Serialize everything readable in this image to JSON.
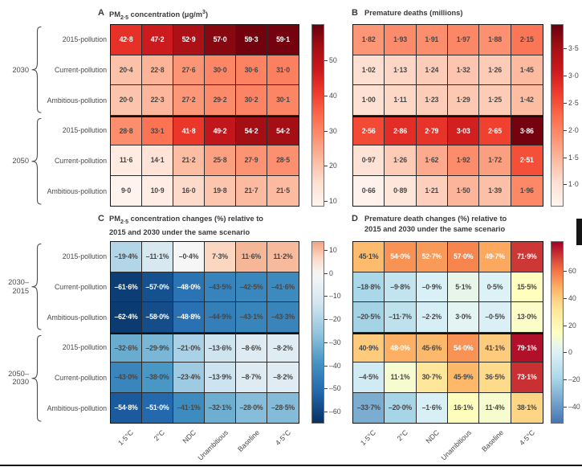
{
  "columns": [
    "1·5°C",
    "2°C",
    "NDC",
    "Unambitious",
    "Baseline",
    "4·5°C"
  ],
  "colormaps": {
    "reds": [
      [
        0,
        "#fff5f0"
      ],
      [
        0.125,
        "#fee0d2"
      ],
      [
        0.25,
        "#fcbba1"
      ],
      [
        0.375,
        "#fc9272"
      ],
      [
        0.5,
        "#fb6a4a"
      ],
      [
        0.625,
        "#ef3b2c"
      ],
      [
        0.75,
        "#cb181d"
      ],
      [
        0.875,
        "#a50f15"
      ],
      [
        1,
        "#67000d"
      ]
    ],
    "rdylbu": [
      [
        0,
        "#4575b4"
      ],
      [
        0.25,
        "#abd9e9"
      ],
      [
        0.4,
        "#e0f3f8"
      ],
      [
        0.5,
        "#ffffbf"
      ],
      [
        0.65,
        "#fee090"
      ],
      [
        0.75,
        "#fdae61"
      ],
      [
        0.85,
        "#f46d43"
      ],
      [
        1,
        "#a50026"
      ]
    ],
    "rdbu_neg": [
      [
        0,
        "#f7f7f7"
      ],
      [
        0.2,
        "#d1e5f0"
      ],
      [
        0.4,
        "#92c5de"
      ],
      [
        0.6,
        "#4393c3"
      ],
      [
        0.8,
        "#2166ac"
      ],
      [
        1,
        "#053061"
      ]
    ],
    "rdbu_pos": [
      [
        0,
        "#f7f7f7"
      ],
      [
        0.5,
        "#fbd9c5"
      ],
      [
        1,
        "#f4a582"
      ]
    ]
  },
  "chart_data": [
    {
      "id": "A",
      "type": "heatmap",
      "title_lines": [
        [
          {
            "t": "PM"
          },
          {
            "t": "2·5",
            "s": "sub"
          },
          {
            "t": " concentration (μg/m"
          },
          {
            "t": "3",
            "s": "sup"
          },
          {
            "t": ")"
          }
        ]
      ],
      "row_groups": [
        {
          "label_lines": [
            "2030"
          ],
          "rows": [
            "2015-pollution",
            "Current-pollution",
            "Ambitious-pollution"
          ]
        },
        {
          "label_lines": [
            "2050"
          ],
          "rows": [
            "2015-pollution",
            "Current-pollution",
            "Ambitious-pollution"
          ]
        }
      ],
      "values": [
        [
          42.8,
          47.2,
          52.9,
          57.0,
          59.3,
          59.1
        ],
        [
          20.4,
          22.8,
          27.6,
          30.0,
          30.6,
          31.0
        ],
        [
          20.0,
          22.3,
          27.2,
          29.2,
          30.2,
          30.1
        ],
        [
          28.8,
          33.1,
          41.8,
          49.2,
          54.2,
          54.2
        ],
        [
          11.6,
          14.1,
          21.2,
          25.8,
          27.9,
          28.5
        ],
        [
          9.0,
          10.9,
          16.0,
          19.8,
          21.7,
          21.5
        ]
      ],
      "decimals": 1,
      "suffix": "",
      "colormap": "reds",
      "vmin": 8.5,
      "vmax": 60.5,
      "colorbar_ticks": [
        50,
        40,
        30,
        20,
        10
      ],
      "tick_decimals": 0,
      "white_if": {
        "op": ">=",
        "value": 41
      }
    },
    {
      "id": "B",
      "type": "heatmap",
      "title_lines": [
        [
          {
            "t": "Premature deaths (millions)"
          }
        ]
      ],
      "row_groups": [
        {
          "label_lines": [
            "2030"
          ],
          "rows": [
            "2015-pollution",
            "Current-pollution",
            "Ambitious-pollution"
          ]
        },
        {
          "label_lines": [
            "2050"
          ],
          "rows": [
            "2015-pollution",
            "Current-pollution",
            "Ambitious-pollution"
          ]
        }
      ],
      "values": [
        [
          1.82,
          1.93,
          1.91,
          1.97,
          1.88,
          2.15
        ],
        [
          1.02,
          1.13,
          1.24,
          1.32,
          1.26,
          1.45
        ],
        [
          1.0,
          1.11,
          1.23,
          1.29,
          1.25,
          1.42
        ],
        [
          2.56,
          2.86,
          2.79,
          3.03,
          2.65,
          3.86
        ],
        [
          0.97,
          1.26,
          1.62,
          1.92,
          1.72,
          2.51
        ],
        [
          0.66,
          0.89,
          1.21,
          1.5,
          1.39,
          1.96
        ]
      ],
      "decimals": 2,
      "suffix": "",
      "colormap": "reds",
      "vmin": 0.6,
      "vmax": 3.95,
      "colorbar_ticks": [
        3.5,
        3.0,
        2.5,
        2.0,
        1.5,
        1.0
      ],
      "tick_decimals": 1,
      "white_if": {
        "op": ">=",
        "value": 2.5
      }
    },
    {
      "id": "C",
      "type": "heatmap",
      "title_lines": [
        [
          {
            "t": "PM"
          },
          {
            "t": "2·5",
            "s": "sub"
          },
          {
            "t": " concentration changes (%) relative to"
          }
        ],
        [
          {
            "t": "2015 and 2030 under the same scenario"
          }
        ]
      ],
      "row_groups": [
        {
          "label_lines": [
            "2030–",
            "2015"
          ],
          "rows": [
            "2015-pollution",
            "Current-pollution",
            "Ambitious-pollution"
          ]
        },
        {
          "label_lines": [
            "2050–",
            "2030"
          ],
          "rows": [
            "2015-pollution",
            "Current-pollution",
            "Ambitious-pollution"
          ]
        }
      ],
      "values": [
        [
          -19.4,
          -11.1,
          -0.4,
          7.3,
          11.6,
          11.2
        ],
        [
          -61.6,
          -57.0,
          -48.0,
          -43.5,
          -42.5,
          -41.6
        ],
        [
          -62.4,
          -58.0,
          -48.8,
          -44.9,
          -43.1,
          -43.3
        ],
        [
          -32.6,
          -29.9,
          -21.0,
          -13.6,
          -8.6,
          -8.2
        ],
        [
          -43.0,
          -38.0,
          -23.4,
          -13.9,
          -8.7,
          -8.2
        ],
        [
          -54.8,
          -51.0,
          -41.1,
          -32.1,
          -28.0,
          -28.5
        ]
      ],
      "decimals": 1,
      "suffix": "%",
      "colormap": "rdbu_div",
      "vmin": -65,
      "vmax": 14,
      "colorbar_ticks": [
        10,
        0,
        -10,
        -20,
        -30,
        -40,
        -50,
        -60
      ],
      "tick_decimals": 0,
      "white_if": {
        "op": "<=",
        "value": -45
      }
    },
    {
      "id": "D",
      "type": "heatmap",
      "title_lines": [
        [
          {
            "t": "Premature death changes (%) relative to"
          }
        ],
        [
          {
            "t": "2015 and 2030 under the same scenario"
          }
        ]
      ],
      "row_groups": [
        {
          "label_lines": [
            "2030–",
            "2015"
          ],
          "rows": [
            "2015-pollution",
            "Current-pollution",
            "Ambitious-pollution"
          ]
        },
        {
          "label_lines": [
            "2050–",
            "2030"
          ],
          "rows": [
            "2015-pollution",
            "Current-pollution",
            "Ambitious-pollution"
          ]
        }
      ],
      "values": [
        [
          45.1,
          54.0,
          52.7,
          57.0,
          49.7,
          71.9
        ],
        [
          -18.8,
          -9.8,
          -0.9,
          5.1,
          0.5,
          15.5
        ],
        [
          -20.5,
          -11.7,
          -2.2,
          3.0,
          -0.5,
          13.0
        ],
        [
          40.9,
          48.0,
          45.6,
          54.0,
          41.1,
          79.1
        ],
        [
          -4.5,
          11.1,
          30.7,
          45.9,
          36.5,
          73.1
        ],
        [
          -33.7,
          -20.0,
          -1.6,
          16.1,
          11.4,
          38.1
        ]
      ],
      "decimals": 1,
      "suffix": "%",
      "colormap": "rdylbu",
      "vmin": -52,
      "vmax": 82,
      "colorbar_ticks": [
        60,
        40,
        20,
        0,
        -20,
        -40
      ],
      "tick_decimals": 0,
      "white_if": {
        "op": ">=",
        "value": 48
      }
    }
  ]
}
